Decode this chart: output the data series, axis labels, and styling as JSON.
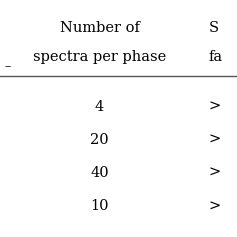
{
  "col1_header_line1": "Number of",
  "col1_header_line2": "spectra per phase",
  "col2_header_line1": "S",
  "col2_header_line2": "fa",
  "rows": [
    [
      "4",
      ">"
    ],
    [
      "20",
      ">"
    ],
    [
      "40",
      ">"
    ],
    [
      "10",
      ">"
    ]
  ],
  "bg_color": "#ffffff",
  "text_color": "#000000",
  "header_line_color": "#555555",
  "font_size": 10.5,
  "header_font_size": 10.5
}
